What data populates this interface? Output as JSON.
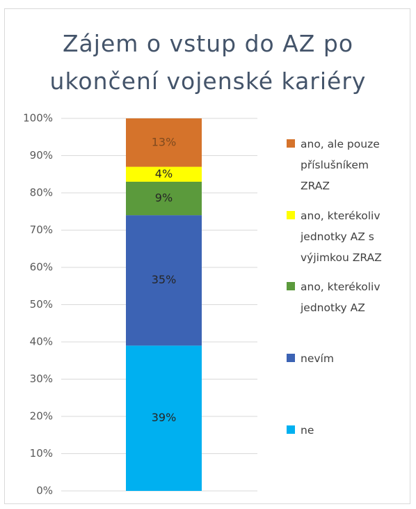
{
  "chart_data": {
    "type": "stacked_bar",
    "title": "Zájem o vstup do AZ po ukončení vojenské kariéry",
    "categories": [
      null
    ],
    "series": [
      {
        "name": "ne",
        "color": "#00b0f0",
        "values": [
          39
        ],
        "value_labels": [
          "39%"
        ]
      },
      {
        "name": "nevím",
        "color": "#3c63b4",
        "values": [
          35
        ],
        "value_labels": [
          "35%"
        ]
      },
      {
        "name": "ano, kterékoliv jednotky AZ",
        "color": "#5b9a3c",
        "values": [
          9
        ],
        "value_labels": [
          "9%"
        ]
      },
      {
        "name": "ano, kterékoliv jednotky AZ s výjimkou ZRAZ",
        "color": "#ffff00",
        "values": [
          4
        ],
        "value_labels": [
          "4%"
        ]
      },
      {
        "name": "ano, ale pouze příslušníkem ZRAZ",
        "color": "#d5732b",
        "values": [
          13
        ],
        "value_labels": [
          "13%"
        ]
      }
    ],
    "ylim": [
      0,
      100
    ],
    "yticks": [
      {
        "value": 0,
        "label": "0%"
      },
      {
        "value": 10,
        "label": "10%"
      },
      {
        "value": 20,
        "label": "20%"
      },
      {
        "value": 30,
        "label": "30%"
      },
      {
        "value": 40,
        "label": "40%"
      },
      {
        "value": 50,
        "label": "50%"
      },
      {
        "value": 60,
        "label": "60%"
      },
      {
        "value": 70,
        "label": "70%"
      },
      {
        "value": 80,
        "label": "80%"
      },
      {
        "value": 90,
        "label": "90%"
      },
      {
        "value": 100,
        "label": "100%"
      }
    ],
    "grid": true,
    "legend": "right"
  }
}
